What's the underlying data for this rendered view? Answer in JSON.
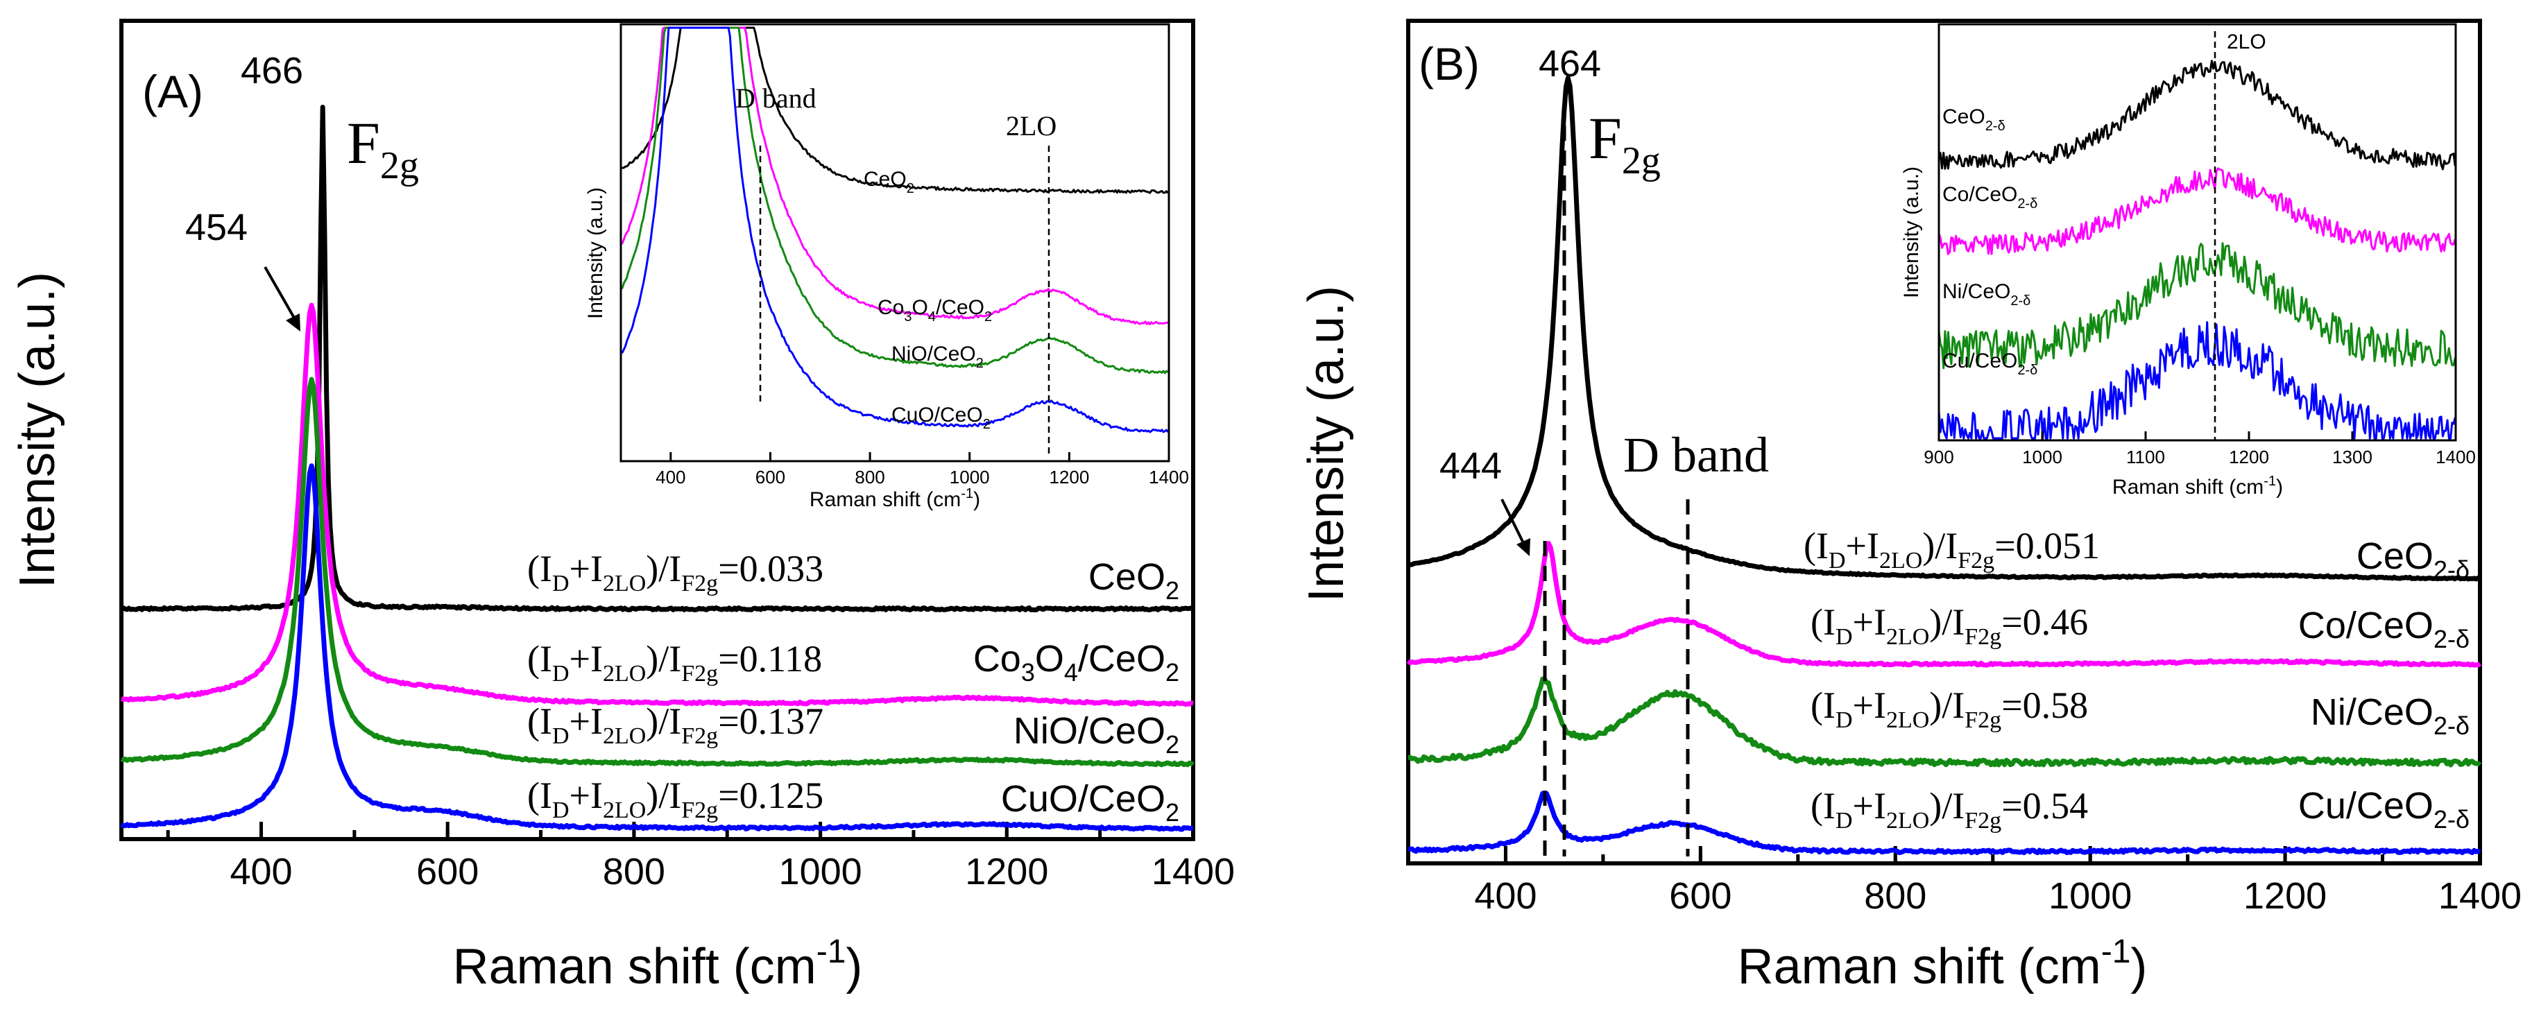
{
  "chart_data": [
    {
      "type": "line",
      "panel_label": "(A)",
      "xlabel": "Raman shift (cm",
      "xlabel_sup": "-1",
      "xlabel_close": ")",
      "ylabel": "Intensity (a.u.)",
      "xlim": [
        250,
        1400
      ],
      "x_ticks": [
        "400",
        "600",
        "800",
        "1000",
        "1200",
        "1400"
      ],
      "peak_labels": [
        "466",
        "454"
      ],
      "f2g": {
        "main": "F",
        "sub": "2g"
      },
      "series": [
        {
          "name": "CeO2",
          "label_main": "CeO",
          "label_sub": "2",
          "label_tail": "",
          "color": "#000000",
          "peak_center": 466,
          "peak_height": 0.93,
          "baseline": 0.0,
          "ratio": "=0.033"
        },
        {
          "name": "Co3O4/CeO2",
          "label_main": "Co",
          "label_sub": "3",
          "label_mid": "O",
          "label_sub2": "4",
          "label_tail": "/CeO",
          "label_sub3": "2",
          "color": "#ff00ff",
          "peak_center": 454,
          "peak_height": 1.0,
          "baseline": 0.0,
          "ratio": "=0.118"
        },
        {
          "name": "NiO/CeO2",
          "label_main": "NiO/CeO",
          "label_sub": "2",
          "color": "#138a13",
          "peak_center": 454,
          "peak_height": 1.0,
          "baseline": 0.0,
          "ratio": "=0.137"
        },
        {
          "name": "CuO/CeO2",
          "label_main": "CuO/CeO",
          "label_sub": "2",
          "color": "#0000ff",
          "peak_center": 454,
          "peak_height": 1.0,
          "baseline": 0.0,
          "ratio": "=0.125"
        }
      ],
      "ratio_prefix": {
        "a": "(I",
        "b": "D",
        "c": "+I",
        "d": "2LO",
        "e": ")/I",
        "f": "F2g"
      },
      "inset": {
        "xlabel": "Raman shift (cm",
        "xlabel_sup": "-1",
        "xlabel_close": ")",
        "ylabel": "Intensity (a.u.)",
        "xlim": [
          300,
          1400
        ],
        "x_ticks": [
          "400",
          "600",
          "800",
          "1000",
          "1200",
          "1400"
        ],
        "annotations": [
          "D band",
          "2LO"
        ],
        "band_positions": [
          570,
          1160
        ],
        "series_labels": [
          {
            "main": "CeO",
            "sub": "2",
            "tail": ""
          },
          {
            "main": "Co",
            "sub": "3",
            "mid": "O",
            "sub2": "4",
            "tail": "/CeO",
            "sub3": "2"
          },
          {
            "main": "NiO/CeO",
            "sub": "2",
            "tail": ""
          },
          {
            "main": "CuO/CeO",
            "sub": "2",
            "tail": ""
          }
        ]
      }
    },
    {
      "type": "line",
      "panel_label": "(B)",
      "xlabel": "Raman shift (cm",
      "xlabel_sup": "-1",
      "xlabel_close": ")",
      "ylabel": "Intensity (a.u.)",
      "xlim": [
        300,
        1400
      ],
      "x_ticks": [
        "400",
        "600",
        "800",
        "1000",
        "1200",
        "1400"
      ],
      "peak_labels": [
        "464",
        "444"
      ],
      "f2g": {
        "main": "F",
        "sub": "2g"
      },
      "d_band_label": "D band",
      "band_positions": [
        444,
        464,
        590
      ],
      "series": [
        {
          "name": "CeO2-δ",
          "label_main": "CeO",
          "label_sub": "2-δ",
          "color": "#000000",
          "peak_center": 464,
          "ratio": "=0.051"
        },
        {
          "name": "Co/CeO2-δ",
          "label_main": "Co/CeO",
          "label_sub": "2-δ",
          "color": "#ff00ff",
          "peak_center": 444,
          "ratio": "=0.46"
        },
        {
          "name": "Ni/CeO2-δ",
          "label_main": "Ni/CeO",
          "label_sub": "2-δ",
          "color": "#138a13",
          "peak_center": 440,
          "ratio": "=0.58"
        },
        {
          "name": "Cu/CeO2-δ",
          "label_main": "Cu/CeO",
          "label_sub": "2-δ",
          "color": "#0000ff",
          "peak_center": 440,
          "ratio": "=0.54"
        }
      ],
      "ratio_prefix": {
        "a": "(I",
        "b": "D",
        "c": "+I",
        "d": "2LO",
        "e": ")/I",
        "f": "F2g"
      },
      "inset": {
        "xlabel": "Raman shift (cm",
        "xlabel_sup": "-1",
        "xlabel_close": ")",
        "ylabel": "Intensity (a.u.)",
        "xlim": [
          900,
          1400
        ],
        "x_ticks": [
          "900",
          "1000",
          "1100",
          "1200",
          "1300",
          "1400"
        ],
        "annotations": [
          "2LO"
        ],
        "band_positions": [
          1175
        ],
        "series_labels": [
          {
            "main": "CeO",
            "sub": "2-δ"
          },
          {
            "main": "Co/CeO",
            "sub": "2-δ"
          },
          {
            "main": "Ni/CeO",
            "sub": "2-δ"
          },
          {
            "main": "Cu/CeO",
            "sub": "2-δ"
          }
        ]
      }
    }
  ]
}
